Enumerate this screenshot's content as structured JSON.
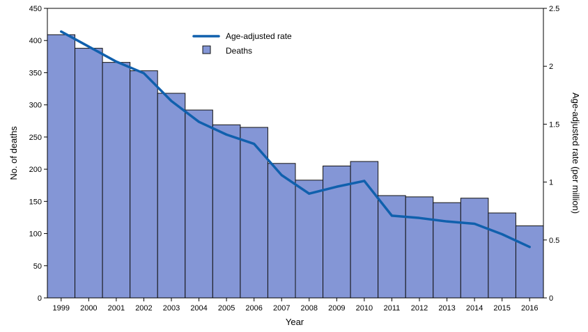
{
  "colors": {
    "bar_fill": "#8496d6",
    "bar_stroke": "#111111",
    "line": "#1060ad",
    "axis": "#000000"
  },
  "chart_data": {
    "type": "bar",
    "title": "",
    "xlabel": "Year",
    "ylabel": "No. of deaths",
    "y2label": "Age-adjusted rate (per million)",
    "categories": [
      "1999",
      "2000",
      "2001",
      "2002",
      "2003",
      "2004",
      "2005",
      "2006",
      "2007",
      "2008",
      "2009",
      "2010",
      "2011",
      "2012",
      "2013",
      "2014",
      "2015",
      "2016"
    ],
    "ylim": [
      0,
      450
    ],
    "y2lim": [
      0,
      2.5
    ],
    "y_ticks": [
      "0",
      "50",
      "100",
      "150",
      "200",
      "250",
      "300",
      "350",
      "400",
      "450"
    ],
    "y2_ticks": [
      "0",
      "0.5",
      "1",
      "1.5",
      "2",
      "2.5"
    ],
    "legend_position": "top-center",
    "grid": false,
    "series": [
      {
        "name": "Deaths",
        "type": "bar",
        "axis": "left",
        "values": [
          409,
          388,
          366,
          353,
          318,
          292,
          269,
          265,
          209,
          183,
          205,
          212,
          159,
          157,
          148,
          155,
          132,
          112
        ]
      },
      {
        "name": "Age-adjusted rate",
        "type": "line",
        "axis": "right",
        "values": [
          2.3,
          2.17,
          2.04,
          1.94,
          1.7,
          1.52,
          1.41,
          1.33,
          1.06,
          0.9,
          0.96,
          1.01,
          0.71,
          0.69,
          0.66,
          0.64,
          0.55,
          0.44
        ]
      }
    ]
  }
}
